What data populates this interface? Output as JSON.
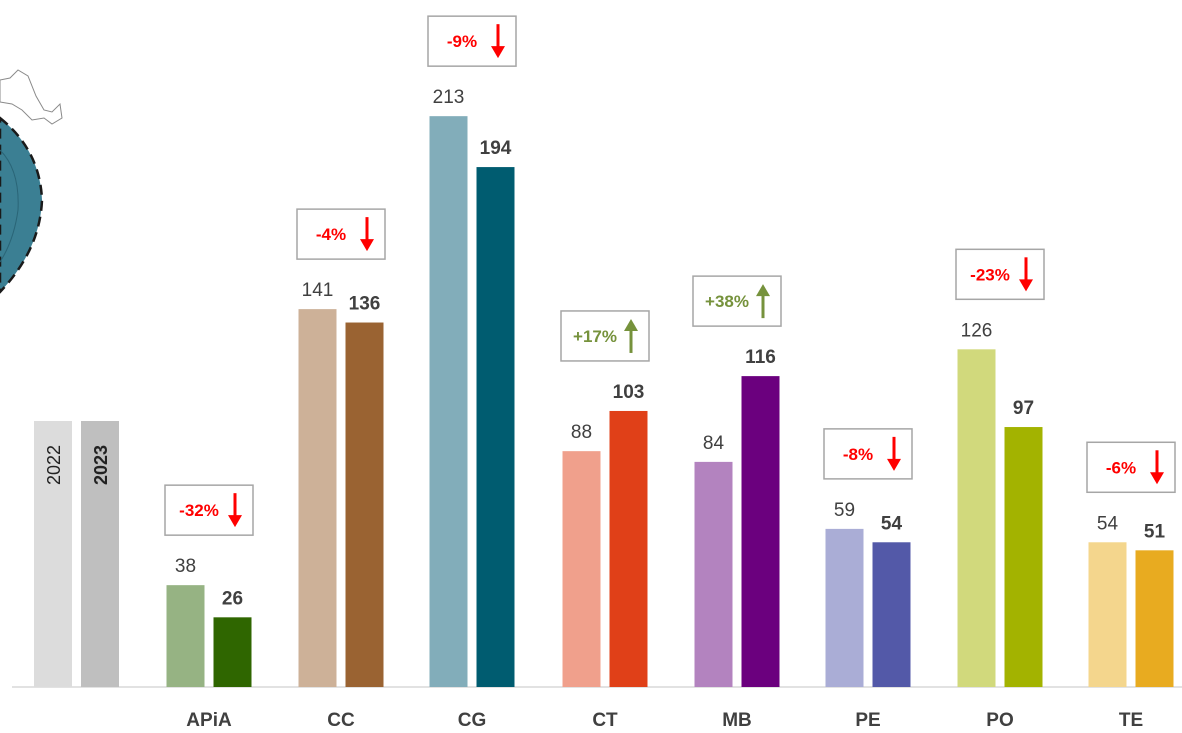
{
  "chart_data": {
    "type": "bar",
    "title": "",
    "xlabel": "",
    "ylabel": "",
    "ylim": [
      0,
      240
    ],
    "grid": false,
    "legend": {
      "placement": "left",
      "entries": [
        "2022",
        "2023"
      ]
    },
    "categories": [
      "APiA",
      "CC",
      "CG",
      "CT",
      "MB",
      "PE",
      "PO",
      "TE"
    ],
    "series": [
      {
        "name": "2022",
        "values": [
          38,
          141,
          213,
          88,
          84,
          59,
          126,
          54
        ]
      },
      {
        "name": "2023",
        "values": [
          26,
          136,
          194,
          103,
          116,
          54,
          97,
          51
        ]
      }
    ],
    "changes": [
      "-32%",
      "-4%",
      "-9%",
      "+17%",
      "+38%",
      "-8%",
      "-23%",
      "-6%"
    ],
    "change_direction": [
      "down",
      "down",
      "down",
      "up",
      "up",
      "down",
      "down",
      "down"
    ],
    "colors": {
      "2022": [
        "#96b383",
        "#cdb198",
        "#82adba",
        "#f0a08c",
        "#b383bf",
        "#aaadd6",
        "#d1d97c",
        "#f4d68d"
      ],
      "2023": [
        "#2f6600",
        "#9a6332",
        "#005c70",
        "#e04018",
        "#6b007e",
        "#5359a8",
        "#a3b300",
        "#e8ab20"
      ],
      "legend": [
        "#dcdcdc",
        "#bfbfbf"
      ],
      "up": "#76923c",
      "down": "#ff0000"
    }
  }
}
